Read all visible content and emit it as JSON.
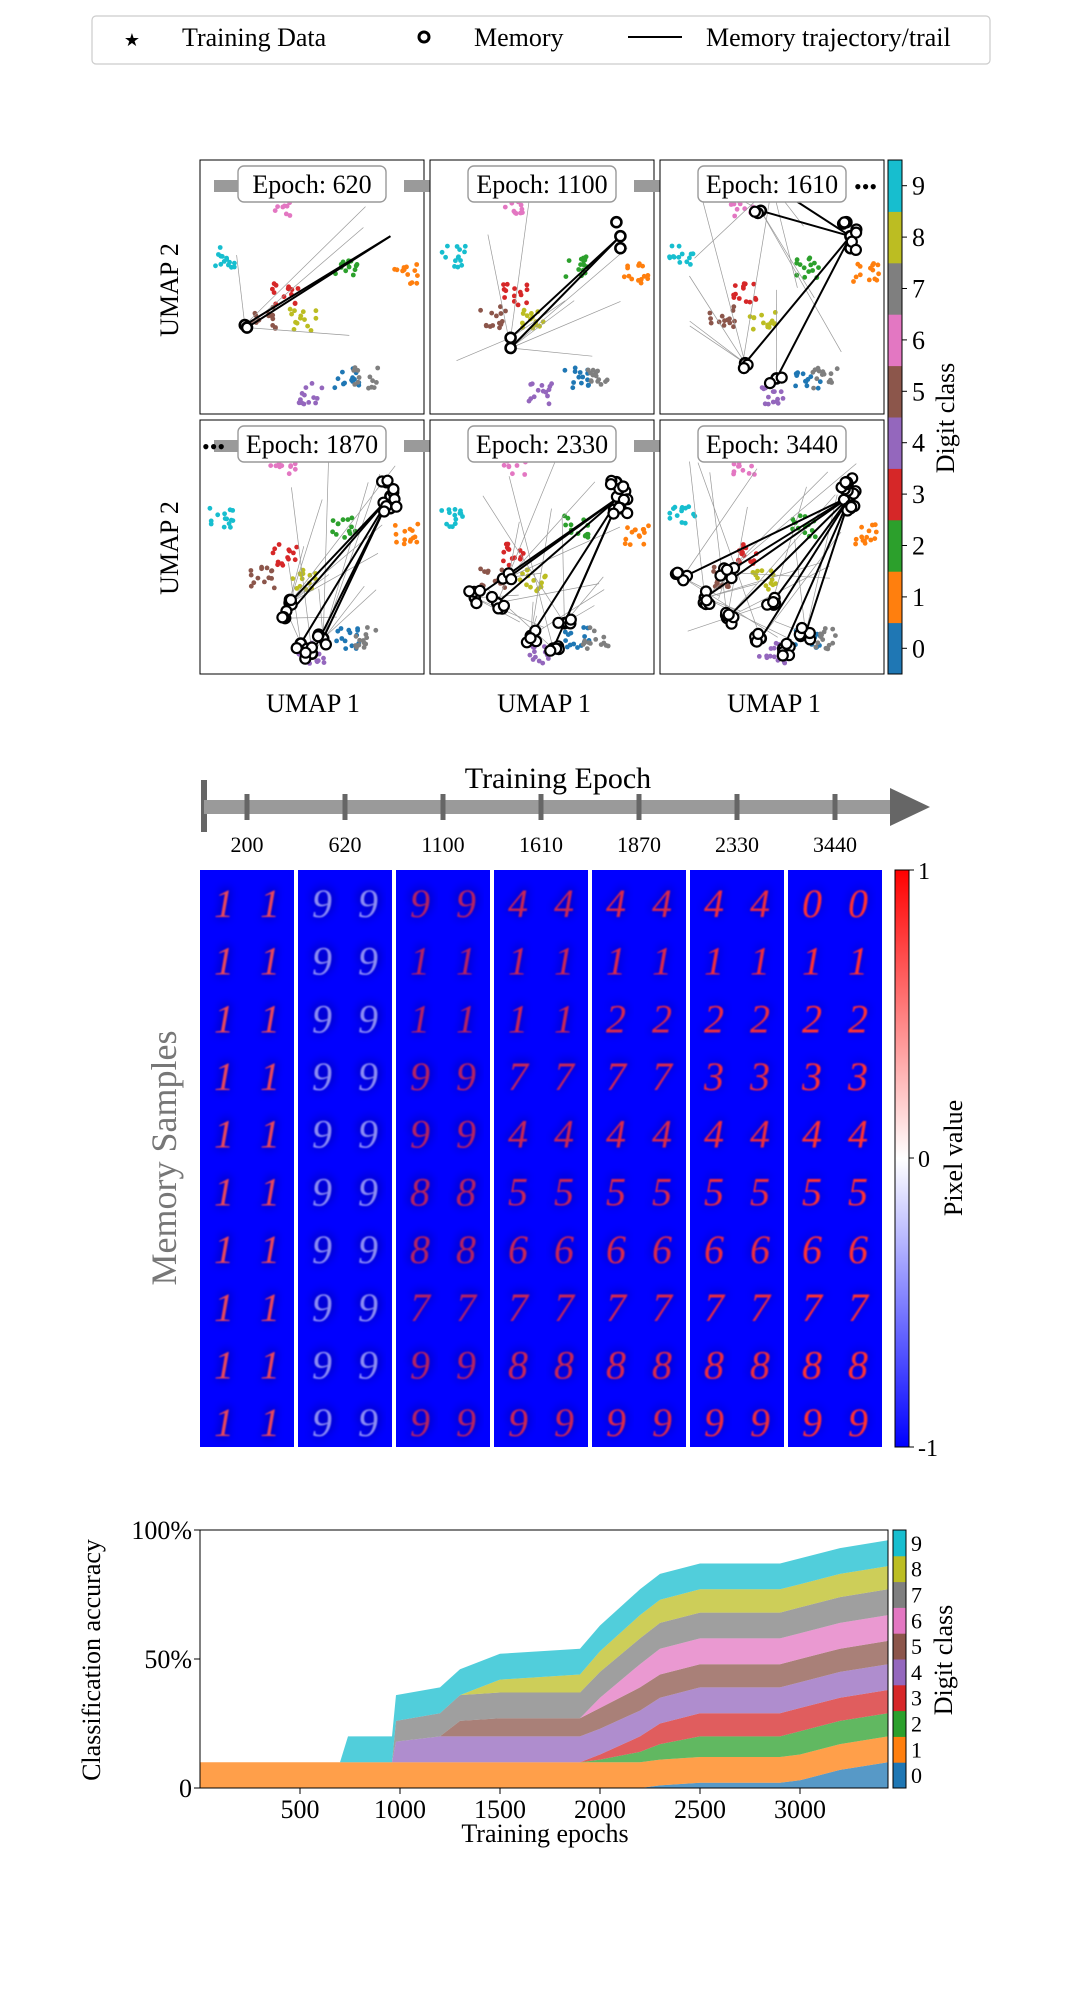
{
  "legend": {
    "items": [
      {
        "label": "Training Data",
        "marker": "star",
        "color": "#17becf"
      },
      {
        "label": "Memory",
        "marker": "circle",
        "color": "#000000"
      },
      {
        "label": "Memory trajectory/trail",
        "marker": "line",
        "color": "#000000"
      }
    ]
  },
  "class_colors": [
    "#1f77b4",
    "#ff7f0e",
    "#2ca02c",
    "#d62728",
    "#9467bd",
    "#8c564b",
    "#e377c2",
    "#7f7f7f",
    "#bcbd22",
    "#17becf"
  ],
  "chart_data": [
    {
      "type": "scatter",
      "title": "",
      "panels": [
        {
          "label": "Epoch: 620"
        },
        {
          "label": "Epoch: 1100"
        },
        {
          "label": "Epoch: 1610"
        },
        {
          "label": "Epoch: 1870"
        },
        {
          "label": "Epoch: 2330"
        },
        {
          "label": "Epoch: 3440"
        }
      ],
      "xlabel": "UMAP 1",
      "ylabel": "UMAP 2",
      "colorbar": {
        "label": "Digit class",
        "ticks": [
          "0",
          "1",
          "2",
          "3",
          "4",
          "5",
          "6",
          "7",
          "8",
          "9"
        ]
      },
      "cluster_centers": [
        {
          "class": 0,
          "x": 0.66,
          "y": 0.14
        },
        {
          "class": 1,
          "x": 0.92,
          "y": 0.55
        },
        {
          "class": 2,
          "x": 0.65,
          "y": 0.58
        },
        {
          "class": 3,
          "x": 0.38,
          "y": 0.47
        },
        {
          "class": 4,
          "x": 0.5,
          "y": 0.08
        },
        {
          "class": 5,
          "x": 0.28,
          "y": 0.38
        },
        {
          "class": 6,
          "x": 0.37,
          "y": 0.82
        },
        {
          "class": 7,
          "x": 0.74,
          "y": 0.14
        },
        {
          "class": 8,
          "x": 0.46,
          "y": 0.37
        },
        {
          "class": 9,
          "x": 0.1,
          "y": 0.62
        }
      ]
    },
    {
      "type": "heatmap",
      "title": "Training Epoch",
      "ylabel": "Memory Samples",
      "epochs": [
        "200",
        "620",
        "1100",
        "1610",
        "1870",
        "2330",
        "3440"
      ],
      "rows": 10,
      "samples_per_epoch": 2,
      "digits": [
        [
          "1",
          "1",
          "1",
          "1",
          "1",
          "1",
          "1",
          "1",
          "1",
          "1"
        ],
        [
          "9",
          "9",
          "9",
          "9",
          "9",
          "9",
          "9",
          "9",
          "9",
          "9"
        ],
        [
          "9",
          "1",
          "1",
          "9",
          "9",
          "8",
          "8",
          "7",
          "9",
          "9"
        ],
        [
          "4",
          "1",
          "1",
          "7",
          "4",
          "5",
          "6",
          "7",
          "8",
          "9"
        ],
        [
          "4",
          "1",
          "2",
          "7",
          "4",
          "5",
          "6",
          "7",
          "8",
          "9"
        ],
        [
          "4",
          "1",
          "2",
          "3",
          "4",
          "5",
          "6",
          "7",
          "8",
          "9"
        ],
        [
          "0",
          "1",
          "2",
          "3",
          "4",
          "5",
          "6",
          "7",
          "8",
          "9"
        ]
      ],
      "colorbar": {
        "label": "Pixel value",
        "ticks": [
          "1",
          "0",
          "-1"
        ],
        "min": -1,
        "max": 1
      }
    },
    {
      "type": "area",
      "title": "",
      "xlabel": "Training epochs",
      "ylabel": "Classification accuracy",
      "xlim": [
        0,
        3440
      ],
      "ylim": [
        0,
        100
      ],
      "xticks": [
        "500",
        "1000",
        "1500",
        "2000",
        "2500",
        "3000"
      ],
      "yticks": [
        "0",
        "50%",
        "100%"
      ],
      "colorbar": {
        "label": "Digit class",
        "ticks": [
          "0",
          "1",
          "2",
          "3",
          "4",
          "5",
          "6",
          "7",
          "8",
          "9"
        ]
      },
      "x": [
        0,
        700,
        740,
        960,
        980,
        1200,
        1300,
        1500,
        1900,
        2000,
        2200,
        2300,
        2500,
        2600,
        2900,
        3000,
        3200,
        3440
      ],
      "series": [
        {
          "values": [
            0,
            0,
            0,
            0,
            0,
            0,
            0,
            0,
            0,
            0,
            0,
            1,
            2,
            2,
            2,
            3,
            7,
            10
          ]
        },
        {
          "values": [
            10,
            10,
            10,
            10,
            10,
            10,
            10,
            10,
            10,
            10,
            10,
            10,
            10,
            10,
            10,
            10,
            10,
            10
          ]
        },
        {
          "values": [
            0,
            0,
            0,
            0,
            0,
            0,
            0,
            0,
            0,
            1,
            4,
            6,
            8,
            8,
            8,
            9,
            9,
            9
          ]
        },
        {
          "values": [
            0,
            0,
            0,
            0,
            0,
            0,
            0,
            0,
            0,
            2,
            6,
            8,
            9,
            9,
            9,
            9,
            9,
            9
          ]
        },
        {
          "values": [
            0,
            0,
            0,
            0,
            8,
            10,
            10,
            10,
            10,
            10,
            10,
            10,
            10,
            10,
            10,
            10,
            10,
            10
          ]
        },
        {
          "values": [
            0,
            0,
            0,
            0,
            0,
            0,
            6,
            7,
            7,
            8,
            9,
            9,
            9,
            9,
            9,
            9,
            9,
            9
          ]
        },
        {
          "values": [
            0,
            0,
            0,
            0,
            0,
            0,
            0,
            0,
            0,
            4,
            9,
            10,
            10,
            10,
            10,
            10,
            10,
            10
          ]
        },
        {
          "values": [
            0,
            0,
            0,
            0,
            8,
            9,
            10,
            10,
            10,
            10,
            10,
            10,
            10,
            10,
            10,
            10,
            10,
            10
          ]
        },
        {
          "values": [
            0,
            0,
            0,
            0,
            0,
            0,
            0,
            5,
            7,
            8,
            9,
            9,
            9,
            9,
            9,
            9,
            9,
            9
          ]
        },
        {
          "values": [
            0,
            0,
            10,
            10,
            10,
            10,
            10,
            10,
            10,
            10,
            10,
            10,
            10,
            10,
            10,
            10,
            10,
            10
          ]
        }
      ]
    }
  ]
}
